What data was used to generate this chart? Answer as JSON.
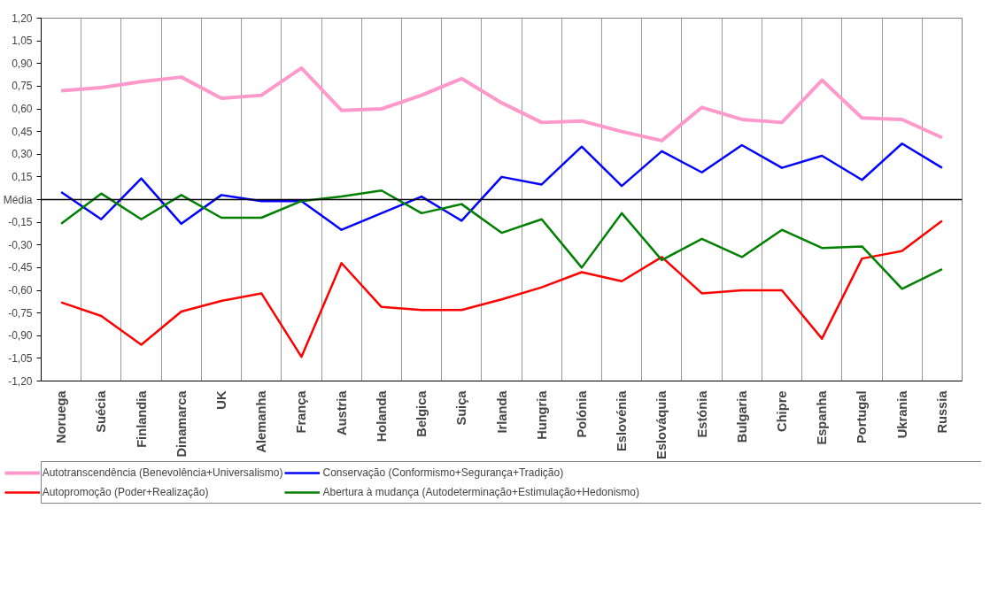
{
  "chart_data": {
    "type": "line",
    "categories": [
      "Noruega",
      "Suécia",
      "Finlandia",
      "Dinamarca",
      "UK",
      "Alemanha",
      "França",
      "Austria",
      "Holanda",
      "Belgica",
      "Suiça",
      "Irlanda",
      "Hungria",
      "Polónia",
      "Eslovénia",
      "Eslováquia",
      "Estónia",
      "Bulgaria",
      "Chipre",
      "Espanha",
      "Portugal",
      "Ukrania",
      "Russia"
    ],
    "series": [
      {
        "name": "Autotranscendência (Benevolência+Universalismo)",
        "color": "#ff99cc",
        "values": [
          0.72,
          0.74,
          0.78,
          0.81,
          0.67,
          0.69,
          0.87,
          0.59,
          0.6,
          0.69,
          0.8,
          0.64,
          0.51,
          0.52,
          0.45,
          0.39,
          0.61,
          0.53,
          0.51,
          0.79,
          0.54,
          0.53,
          0.41
        ]
      },
      {
        "name": "Autopromoção (Poder+Realização)",
        "color": "#ff0000",
        "values": [
          -0.68,
          -0.77,
          -0.96,
          -0.74,
          -0.67,
          -0.62,
          -1.04,
          -0.42,
          -0.71,
          -0.73,
          -0.73,
          -0.66,
          -0.58,
          -0.48,
          -0.54,
          -0.38,
          -0.62,
          -0.6,
          -0.6,
          -0.92,
          -0.39,
          -0.34,
          -0.14
        ]
      },
      {
        "name": "Conservação (Conformismo+Segurança+Tradição)",
        "color": "#0000ff",
        "values": [
          0.05,
          -0.13,
          0.14,
          -0.16,
          0.03,
          -0.01,
          -0.01,
          -0.2,
          -0.09,
          0.02,
          -0.14,
          0.15,
          0.1,
          0.35,
          0.09,
          0.32,
          0.18,
          0.36,
          0.21,
          0.29,
          0.13,
          0.37,
          0.21
        ]
      },
      {
        "name": "Abertura à mudança (Autodeterminação+Estimulação+Hedonismo)",
        "color": "#008000",
        "values": [
          -0.16,
          0.04,
          -0.13,
          0.03,
          -0.12,
          -0.12,
          -0.01,
          0.02,
          0.06,
          -0.09,
          -0.03,
          -0.22,
          -0.13,
          -0.45,
          -0.09,
          -0.4,
          -0.26,
          -0.38,
          -0.2,
          -0.32,
          -0.31,
          -0.59,
          -0.46
        ]
      }
    ],
    "ylim": [
      -1.2,
      1.2
    ],
    "yticks": [
      {
        "value": 1.2,
        "label": "1,20"
      },
      {
        "value": 1.05,
        "label": "1,05"
      },
      {
        "value": 0.9,
        "label": "0,90"
      },
      {
        "value": 0.75,
        "label": "0,75"
      },
      {
        "value": 0.6,
        "label": "0,60"
      },
      {
        "value": 0.45,
        "label": "0,45"
      },
      {
        "value": 0.3,
        "label": "0,30"
      },
      {
        "value": 0.15,
        "label": "0,15"
      },
      {
        "value": 0,
        "label": "Média"
      },
      {
        "value": -0.15,
        "label": "-0,15"
      },
      {
        "value": -0.3,
        "label": "-0,30"
      },
      {
        "value": -0.45,
        "label": "-0,45"
      },
      {
        "value": -0.6,
        "label": "-0,60"
      },
      {
        "value": -0.75,
        "label": "-0,75"
      },
      {
        "value": -0.9,
        "label": "-0,90"
      },
      {
        "value": -1.05,
        "label": "-1,05"
      },
      {
        "value": -1.2,
        "label": "-1,20"
      }
    ],
    "ref_lines": [
      {
        "axis": "y",
        "value": 0,
        "color": "#000000"
      }
    ],
    "grid": "x",
    "legend": "bottom",
    "marker": "none",
    "line_style": "solid"
  }
}
